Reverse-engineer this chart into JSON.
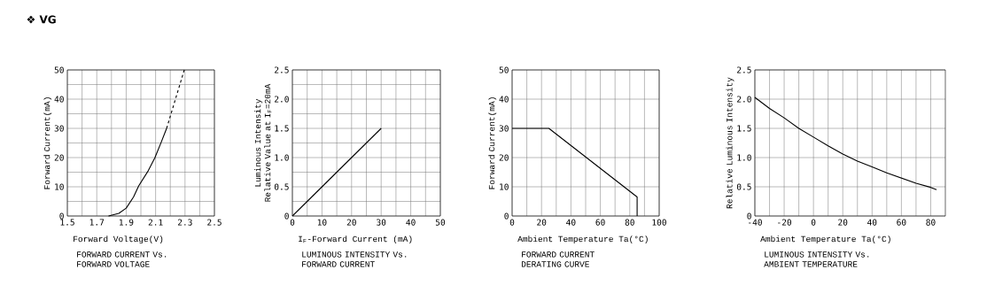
{
  "chart_data": [
    {
      "type": "line",
      "title": "FORWARD CURRENT Vs. FORWARD VOLTAGE",
      "xlabel": "Forward Voltage(V)",
      "ylabel": "Forward Current(mA)",
      "annotations": [
        "❖ VG"
      ],
      "xlim": [
        1.5,
        2.5
      ],
      "ylim": [
        0,
        50
      ],
      "xticks": [
        1.5,
        {
          "value": 1.6,
          "label": null
        },
        1.7,
        {
          "value": 1.8,
          "label": null
        },
        1.9,
        {
          "value": 2.0,
          "label": null
        },
        2.1,
        {
          "value": 2.2,
          "label": null
        },
        2.3,
        {
          "value": 2.4,
          "label": null
        },
        2.5
      ],
      "yticks": [
        0,
        {
          "value": 5,
          "label": null
        },
        10,
        {
          "value": 15,
          "label": null
        },
        20,
        {
          "value": 25,
          "label": null
        },
        30,
        {
          "value": 35,
          "label": null
        },
        40,
        {
          "value": 45,
          "label": null
        },
        50
      ],
      "grid": true,
      "series": [
        {
          "color": "#000000",
          "line_style": "solid",
          "x": [
            1.78,
            1.85,
            1.9,
            1.95,
            1.985,
            2.05,
            2.095,
            2.14,
            2.175
          ],
          "values": [
            0,
            0.9,
            2.7,
            6.5,
            10.3,
            15.5,
            19.9,
            25.5,
            30
          ]
        },
        {
          "color": "#000000",
          "line_style": "dashed",
          "x": [
            2.175,
            2.235,
            2.295
          ],
          "values": [
            30,
            40,
            50
          ]
        }
      ]
    },
    {
      "type": "line",
      "title": "LUMINOUS INTENSITY Vs. FORWARD CURRENT",
      "xlabel": "I$_{F}$-Forward Current (mA)",
      "ylabel": "Luminous Intensity Relative Value at I$_{F}$=20mA",
      "xlim": [
        0,
        50
      ],
      "ylim": [
        0,
        2.5
      ],
      "xticks": [
        0,
        {
          "value": 5,
          "label": null
        },
        10,
        {
          "value": 15,
          "label": null
        },
        20,
        {
          "value": 25,
          "label": null
        },
        30,
        {
          "value": 35,
          "label": null
        },
        40,
        {
          "value": 45,
          "label": null
        },
        50
      ],
      "yticks": [
        0,
        {
          "value": 0.25,
          "label": null
        },
        0.5,
        {
          "value": 0.75,
          "label": null
        },
        {
          "value": 1,
          "label": "1.0"
        },
        {
          "value": 1.25,
          "label": null
        },
        1.5,
        {
          "value": 1.75,
          "label": null
        },
        {
          "value": 2,
          "label": "2.0"
        },
        {
          "value": 2.25,
          "label": null
        },
        2.5
      ],
      "grid": true,
      "series": [
        {
          "color": "#000000",
          "line_style": "solid",
          "x": [
            0,
            30
          ],
          "values": [
            0,
            1.5
          ]
        }
      ]
    },
    {
      "type": "line",
      "title": "FORWARD CURRENT DERATING CURVE",
      "xlabel": "Ambient Temperature Ta(°C)",
      "ylabel": "Forward Current(mA)",
      "xlim": [
        0,
        100
      ],
      "ylim": [
        0,
        50
      ],
      "xticks": [
        0,
        {
          "value": 10,
          "label": null
        },
        20,
        {
          "value": 30,
          "label": null
        },
        40,
        {
          "value": 50,
          "label": null
        },
        60,
        {
          "value": 70,
          "label": null
        },
        80,
        {
          "value": 90,
          "label": null
        },
        100
      ],
      "yticks": [
        0,
        10,
        20,
        30,
        40,
        50
      ],
      "grid": true,
      "series": [
        {
          "color": "#000000",
          "line_style": "solid",
          "x": [
            0,
            25,
            85,
            85
          ],
          "values": [
            30,
            30,
            6.5,
            0
          ]
        }
      ]
    },
    {
      "type": "line",
      "title": "LUMINOUS INTENSITY Vs. AMBIENT TEMPERATURE",
      "xlabel": "Ambient Temperature Ta(°C)",
      "ylabel": "Relative Luminous Intensity",
      "xlim": [
        -40,
        90
      ],
      "ylim": [
        0,
        2.5
      ],
      "xticks": [
        -40,
        {
          "value": -30,
          "label": null
        },
        -20,
        {
          "value": -10,
          "label": null
        },
        0,
        {
          "value": 10,
          "label": null
        },
        20,
        {
          "value": 30,
          "label": null
        },
        40,
        {
          "value": 50,
          "label": null
        },
        60,
        {
          "value": 70,
          "label": null
        },
        80
      ],
      "yticks": [
        0,
        0.5,
        {
          "value": 1,
          "label": "1.0"
        },
        1.5,
        {
          "value": 2,
          "label": "2.0"
        },
        2.5
      ],
      "grid": true,
      "series": [
        {
          "color": "#000000",
          "line_style": "solid",
          "x": [
            -40,
            -30,
            -20,
            -10,
            0,
            10,
            20,
            30,
            40,
            50,
            60,
            70,
            80,
            84
          ],
          "values": [
            2.03,
            1.84,
            1.68,
            1.5,
            1.35,
            1.2,
            1.06,
            0.94,
            0.84,
            0.74,
            0.65,
            0.56,
            0.49,
            0.45
          ]
        }
      ]
    }
  ]
}
